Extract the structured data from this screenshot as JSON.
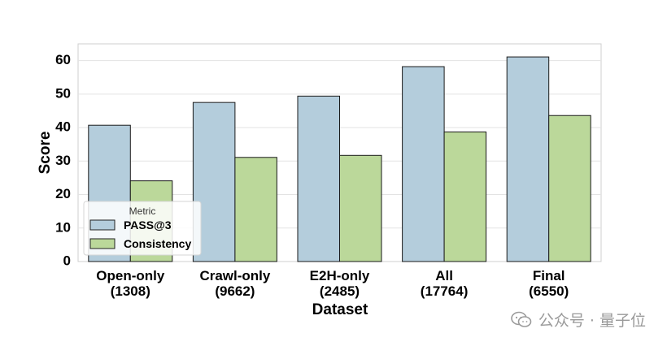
{
  "chart_data": {
    "type": "bar",
    "categories": [
      "Open-only\n(1308)",
      "Crawl-only\n(9662)",
      "E2H-only\n(2485)",
      "All\n(17764)",
      "Final\n(6550)"
    ],
    "series": [
      {
        "name": "PASS@3",
        "values": [
          40.7,
          47.5,
          49.4,
          58.2,
          61.1
        ],
        "color": "#b4cddc"
      },
      {
        "name": "Consistency",
        "values": [
          24.1,
          31.1,
          31.7,
          38.7,
          43.6
        ],
        "color": "#bbd89a"
      }
    ],
    "xlabel": "Dataset",
    "ylabel": "Score",
    "ylim": [
      0,
      65
    ],
    "yticks": [
      0,
      10,
      20,
      30,
      40,
      50,
      60
    ],
    "grid": true,
    "legend": {
      "title": "Metric",
      "placement": "lower-left"
    }
  },
  "watermark": {
    "text": "公众号 · 量子位",
    "icon": "wechat-icon"
  }
}
